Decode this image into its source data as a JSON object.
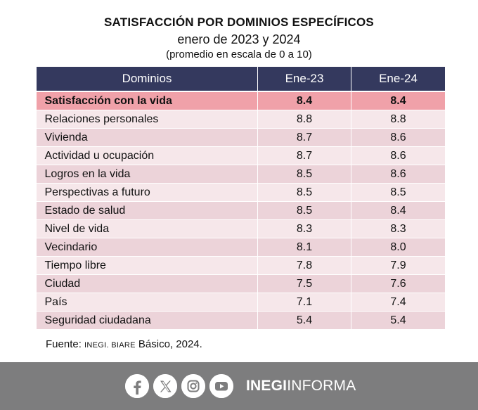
{
  "header": {
    "title": "SATISFACCIÓN POR DOMINIOS ESPECÍFICOS",
    "subtitle": "enero de 2023 y 2024",
    "note": "(promedio en escala de 0 a 10)"
  },
  "table": {
    "columns": [
      "Dominios",
      "Ene-23",
      "Ene-24"
    ],
    "rows": [
      {
        "dominio": "Satisfacción con la vida",
        "ene23": "8.4",
        "ene24": "8.4"
      },
      {
        "dominio": "Relaciones personales",
        "ene23": "8.8",
        "ene24": "8.8"
      },
      {
        "dominio": "Vivienda",
        "ene23": "8.7",
        "ene24": "8.6"
      },
      {
        "dominio": "Actividad u ocupación",
        "ene23": "8.7",
        "ene24": "8.6"
      },
      {
        "dominio": "Logros en la vida",
        "ene23": "8.5",
        "ene24": "8.6"
      },
      {
        "dominio": "Perspectivas a futuro",
        "ene23": "8.5",
        "ene24": "8.5"
      },
      {
        "dominio": "Estado de salud",
        "ene23": "8.5",
        "ene24": "8.4"
      },
      {
        "dominio": "Nivel de vida",
        "ene23": "8.3",
        "ene24": "8.3"
      },
      {
        "dominio": "Vecindario",
        "ene23": "8.1",
        "ene24": "8.0"
      },
      {
        "dominio": "Tiempo libre",
        "ene23": "7.8",
        "ene24": "7.9"
      },
      {
        "dominio": "Ciudad",
        "ene23": "7.5",
        "ene24": "7.6"
      },
      {
        "dominio": "País",
        "ene23": "7.1",
        "ene24": "7.4"
      },
      {
        "dominio": "Seguridad ciudadana",
        "ene23": "5.4",
        "ene24": "5.4"
      }
    ]
  },
  "source": {
    "prefix": "Fuente: ",
    "org": "INEGI. BIARE",
    "suffix": " Básico, 2024."
  },
  "footer": {
    "icons": [
      "facebook-icon",
      "x-icon",
      "instagram-icon",
      "youtube-icon"
    ],
    "brand_bold": "INEGI",
    "brand_light": "INFORMA"
  },
  "colors": {
    "header_bg": "#34395e",
    "highlight_row": "#f0a1a9",
    "row_light": "#f6e7ea",
    "row_dark": "#ecd3d9",
    "footer_bg": "#7d7d7e"
  }
}
